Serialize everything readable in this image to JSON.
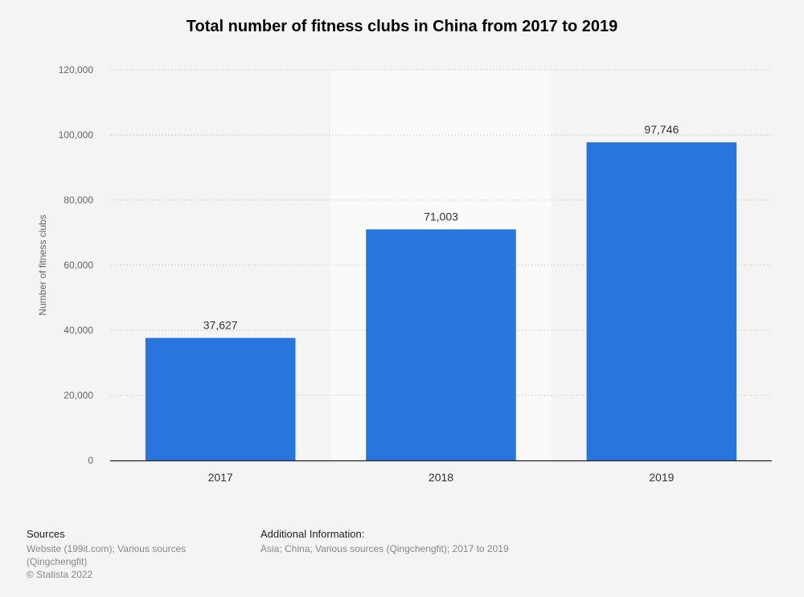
{
  "chart_data": {
    "type": "bar",
    "title": "Total number of fitness clubs in China from 2017 to 2019",
    "categories": [
      "2017",
      "2018",
      "2019"
    ],
    "values": [
      37627,
      71003,
      97746
    ],
    "value_labels": [
      "37,627",
      "71,003",
      "97,746"
    ],
    "ylabel": "Number of fitness clubs",
    "xlabel": "",
    "ylim": [
      0,
      120000
    ],
    "yticks": [
      0,
      20000,
      40000,
      60000,
      80000,
      100000,
      120000
    ],
    "ytick_labels": [
      "0",
      "20,000",
      "40,000",
      "60,000",
      "80,000",
      "100,000",
      "120,000"
    ],
    "grid": true,
    "highlighted_category": "2018",
    "bar_color": "#2876dd"
  },
  "footer": {
    "sources_title": "Sources",
    "sources_line1": "Website (199it.com); Various sources",
    "sources_line2": "(Qingchengfit)",
    "copyright": "© Statista 2022",
    "additional_title": "Additional Information:",
    "additional_text": "Asia; China; Various sources (Qingchengfit); 2017 to 2019"
  }
}
